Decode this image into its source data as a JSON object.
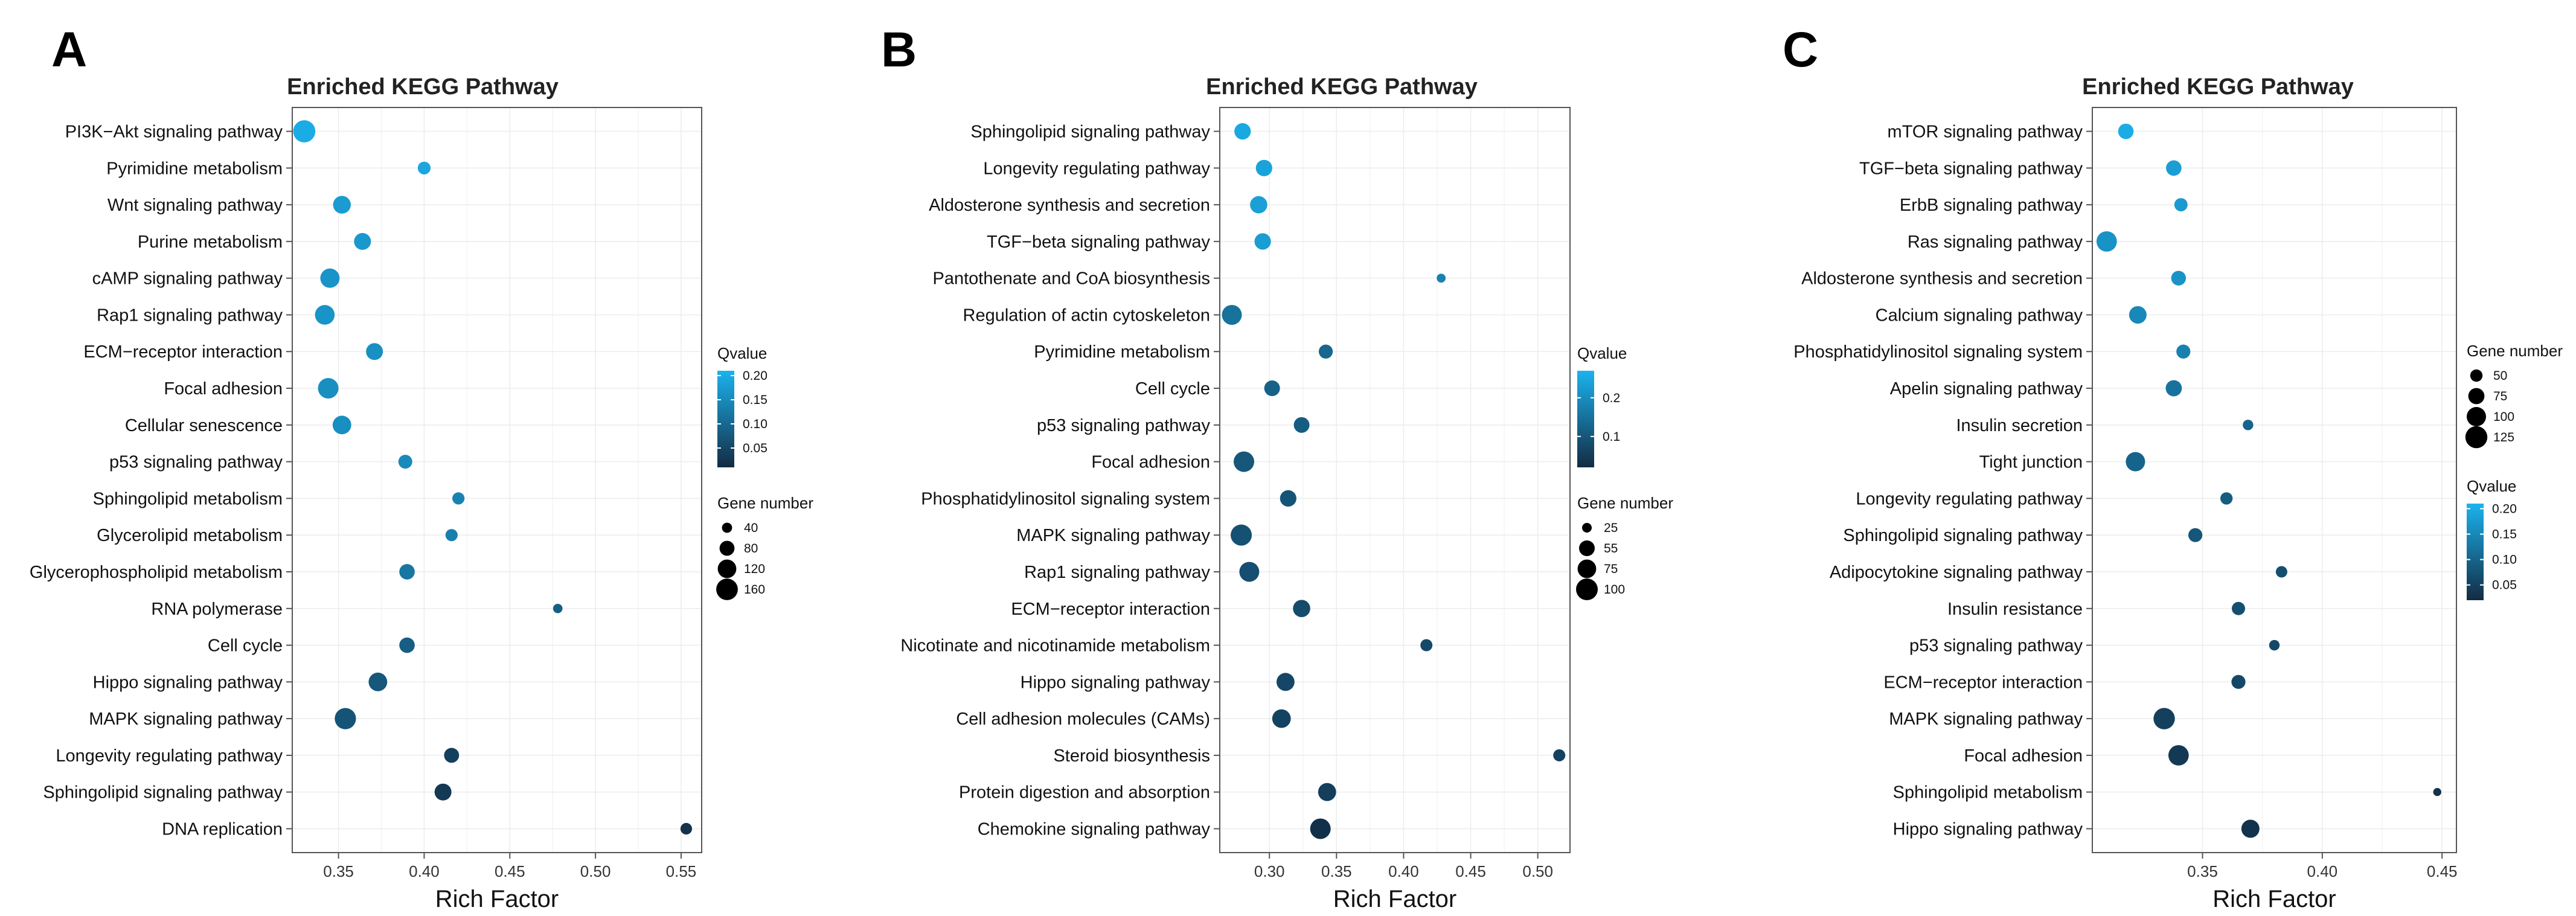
{
  "colors": {
    "qvalue_low": "#132b43",
    "qvalue_high": "#1bb3ef",
    "gene_dot": "#000000"
  },
  "chart_data": [
    {
      "type": "scatter",
      "panel": "A",
      "title": "Enriched KEGG Pathway",
      "xlabel": "Rich Factor",
      "ylabel": "",
      "xlim": [
        0.323,
        0.562
      ],
      "xticks": [
        0.35,
        0.4,
        0.45,
        0.5,
        0.55
      ],
      "xtick_labels": [
        "0.35",
        "0.40",
        "0.45",
        "0.50",
        "0.55"
      ],
      "grid": true,
      "categories": [
        "PI3K−Akt signaling pathway",
        "Pyrimidine metabolism",
        "Wnt signaling pathway",
        "Purine metabolism",
        "cAMP signaling pathway",
        "Rap1 signaling pathway",
        "ECM−receptor interaction",
        "Focal adhesion",
        "Cellular senescence",
        "p53 signaling pathway",
        "Sphingolipid metabolism",
        "Glycerolipid metabolism",
        "Glycerophospholipid metabolism",
        "RNA polymerase",
        "Cell cycle",
        "Hippo signaling pathway",
        "MAPK signaling pathway",
        "Longevity regulating pathway",
        "Sphingolipid signaling pathway",
        "DNA replication"
      ],
      "rich_factor": [
        0.33,
        0.4,
        0.352,
        0.364,
        0.345,
        0.342,
        0.371,
        0.344,
        0.352,
        0.389,
        0.42,
        0.416,
        0.39,
        0.478,
        0.39,
        0.373,
        0.354,
        0.416,
        0.411,
        0.553
      ],
      "qvalue": [
        0.2,
        0.19,
        0.175,
        0.17,
        0.165,
        0.165,
        0.158,
        0.155,
        0.155,
        0.15,
        0.14,
        0.135,
        0.12,
        0.085,
        0.085,
        0.075,
        0.07,
        0.04,
        0.03,
        0.02
      ],
      "gene_number": [
        170,
        60,
        110,
        100,
        130,
        135,
        100,
        145,
        120,
        70,
        55,
        55,
        85,
        35,
        85,
        120,
        155,
        80,
        100,
        50
      ],
      "qvalue_legend": {
        "title": "Qvalue",
        "range": [
          0.01,
          0.21
        ],
        "ticks": [
          0.2,
          0.15,
          0.1,
          0.05
        ],
        "labels": [
          "0.20",
          "0.15",
          "0.10",
          "0.05"
        ]
      },
      "size_legend": {
        "title": "Gene number",
        "values": [
          40,
          80,
          120,
          160
        ],
        "labels": [
          "40",
          "80",
          "120",
          "160"
        ],
        "size_range": [
          20,
          180
        ]
      },
      "legend_position": "right"
    },
    {
      "type": "scatter",
      "panel": "B",
      "title": "Enriched KEGG Pathway",
      "xlabel": "Rich Factor",
      "ylabel": "",
      "xlim": [
        0.263,
        0.524
      ],
      "xticks": [
        0.3,
        0.35,
        0.4,
        0.45,
        0.5
      ],
      "xtick_labels": [
        "0.30",
        "0.35",
        "0.40",
        "0.45",
        "0.50"
      ],
      "grid": true,
      "categories": [
        "Sphingolipid signaling pathway",
        "Longevity regulating pathway",
        "Aldosterone synthesis and secretion",
        "TGF−beta signaling pathway",
        "Pantothenate and CoA biosynthesis",
        "Regulation of actin cytoskeleton",
        "Pyrimidine metabolism",
        "Cell cycle",
        "p53 signaling pathway",
        "Focal adhesion",
        "Phosphatidylinositol signaling system",
        "MAPK signaling pathway",
        "Rap1 signaling pathway",
        "ECM−receptor interaction",
        "Nicotinate and nicotinamide metabolism",
        "Hippo signaling pathway",
        "Cell adhesion molecules (CAMs)",
        "Steroid biosynthesis",
        "Protein digestion and absorption",
        "Chemokine signaling pathway"
      ],
      "rich_factor": [
        0.28,
        0.296,
        0.292,
        0.295,
        0.428,
        0.272,
        0.342,
        0.302,
        0.324,
        0.281,
        0.314,
        0.279,
        0.285,
        0.324,
        0.417,
        0.312,
        0.309,
        0.516,
        0.343,
        0.338
      ],
      "qvalue": [
        0.25,
        0.24,
        0.235,
        0.23,
        0.18,
        0.15,
        0.13,
        0.12,
        0.11,
        0.1,
        0.095,
        0.09,
        0.085,
        0.08,
        0.075,
        0.07,
        0.065,
        0.06,
        0.055,
        0.03
      ],
      "gene_number": [
        60,
        60,
        65,
        60,
        22,
        85,
        45,
        55,
        55,
        90,
        60,
        95,
        85,
        65,
        35,
        70,
        75,
        35,
        70,
        90
      ],
      "qvalue_legend": {
        "title": "Qvalue",
        "range": [
          0.02,
          0.27
        ],
        "ticks": [
          0.2,
          0.1
        ],
        "labels": [
          "0.2",
          "0.1"
        ]
      },
      "size_legend": {
        "title": "Gene number",
        "values": [
          25,
          55,
          75,
          100
        ],
        "labels": [
          "25",
          "55",
          "75",
          "100"
        ],
        "size_range": [
          15,
          110
        ]
      },
      "legend_position": "right"
    },
    {
      "type": "scatter",
      "panel": "C",
      "title": "Enriched KEGG Pathway",
      "xlabel": "Rich Factor",
      "ylabel": "",
      "xlim": [
        0.304,
        0.456
      ],
      "xticks": [
        0.35,
        0.4,
        0.45
      ],
      "xtick_labels": [
        "0.35",
        "0.40",
        "0.45"
      ],
      "grid": true,
      "categories": [
        "mTOR signaling pathway",
        "TGF−beta signaling pathway",
        "ErbB signaling pathway",
        "Ras signaling pathway",
        "Aldosterone synthesis and secretion",
        "Calcium signaling pathway",
        "Phosphatidylinositol signaling system",
        "Apelin signaling pathway",
        "Insulin secretion",
        "Tight junction",
        "Longevity regulating pathway",
        "Sphingolipid signaling pathway",
        "Adipocytokine signaling pathway",
        "Insulin resistance",
        "p53 signaling pathway",
        "ECM−receptor interaction",
        "MAPK signaling pathway",
        "Focal adhesion",
        "Sphingolipid metabolism",
        "Hippo signaling pathway"
      ],
      "rich_factor": [
        0.318,
        0.338,
        0.341,
        0.31,
        0.34,
        0.323,
        0.342,
        0.338,
        0.369,
        0.322,
        0.36,
        0.347,
        0.383,
        0.365,
        0.38,
        0.365,
        0.334,
        0.34,
        0.448,
        0.37
      ],
      "qvalue": [
        0.2,
        0.18,
        0.175,
        0.165,
        0.165,
        0.15,
        0.14,
        0.12,
        0.1,
        0.1,
        0.09,
        0.08,
        0.07,
        0.07,
        0.06,
        0.06,
        0.05,
        0.04,
        0.03,
        0.03
      ],
      "gene_number": [
        70,
        70,
        55,
        110,
        65,
        85,
        60,
        75,
        40,
        100,
        50,
        60,
        45,
        55,
        40,
        60,
        120,
        110,
        30,
        90
      ],
      "qvalue_legend": {
        "title": "Qvalue",
        "range": [
          0.02,
          0.21
        ],
        "ticks": [
          0.2,
          0.15,
          0.1,
          0.05
        ],
        "labels": [
          "0.20",
          "0.15",
          "0.10",
          "0.05"
        ]
      },
      "size_legend": {
        "title": "Gene number",
        "values": [
          50,
          75,
          100,
          125
        ],
        "labels": [
          "50",
          "75",
          "100",
          "125"
        ],
        "size_range": [
          25,
          135
        ]
      },
      "legend_position": "right"
    }
  ]
}
